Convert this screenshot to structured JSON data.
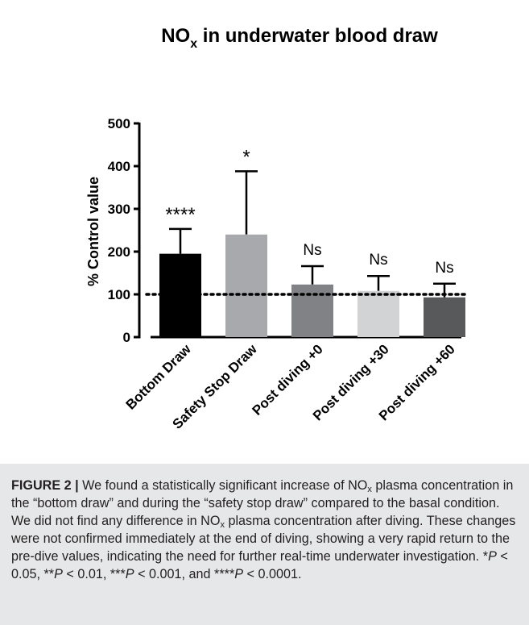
{
  "chart_data": {
    "type": "bar",
    "title": "NO",
    "title_subscript": "x",
    "title_rest": " in underwater blood draw",
    "ylabel": "% Control value",
    "xlabel": "",
    "ylim": [
      0,
      500
    ],
    "yticks": [
      "0",
      "100",
      "200",
      "300",
      "400",
      "500"
    ],
    "grid": false,
    "reference_line": {
      "y": 100,
      "style": "dotted"
    },
    "categories": [
      "Bottom Draw",
      "Safety Stop Draw",
      "Post diving +0",
      "Post diving +30",
      "Post diving +60"
    ],
    "values": [
      195,
      240,
      123,
      108,
      93
    ],
    "error_upper": [
      253,
      388,
      166,
      143,
      125
    ],
    "significance": [
      "****",
      "*",
      "Ns",
      "Ns",
      "Ns"
    ],
    "colors": [
      "#000000",
      "#a7a9ac",
      "#808285",
      "#d1d3d4",
      "#58595b"
    ]
  },
  "caption": {
    "label": "FIGURE 2 |",
    "p1": " We found a statistically significant increase of NO",
    "sub1": "x",
    "p2": " plasma concentration in the “bottom draw” and during the “safety stop draw” compared to the basal condition. We did not find any difference in NO",
    "sub2": "x",
    "p3": " plasma concentration after diving. These changes were not confirmed immediately at the end of diving, showing a very rapid return to the pre-dive values, indicating the need for further real-time underwater investigation. ",
    "s1": "*",
    "pv1": "P",
    "t1": " < 0.05, **",
    "pv2": "P",
    "t2": " < 0.01, ***",
    "pv3": "P",
    "t3": " < 0.001, and ****",
    "pv4": "P",
    "t4": " < 0.0001."
  }
}
